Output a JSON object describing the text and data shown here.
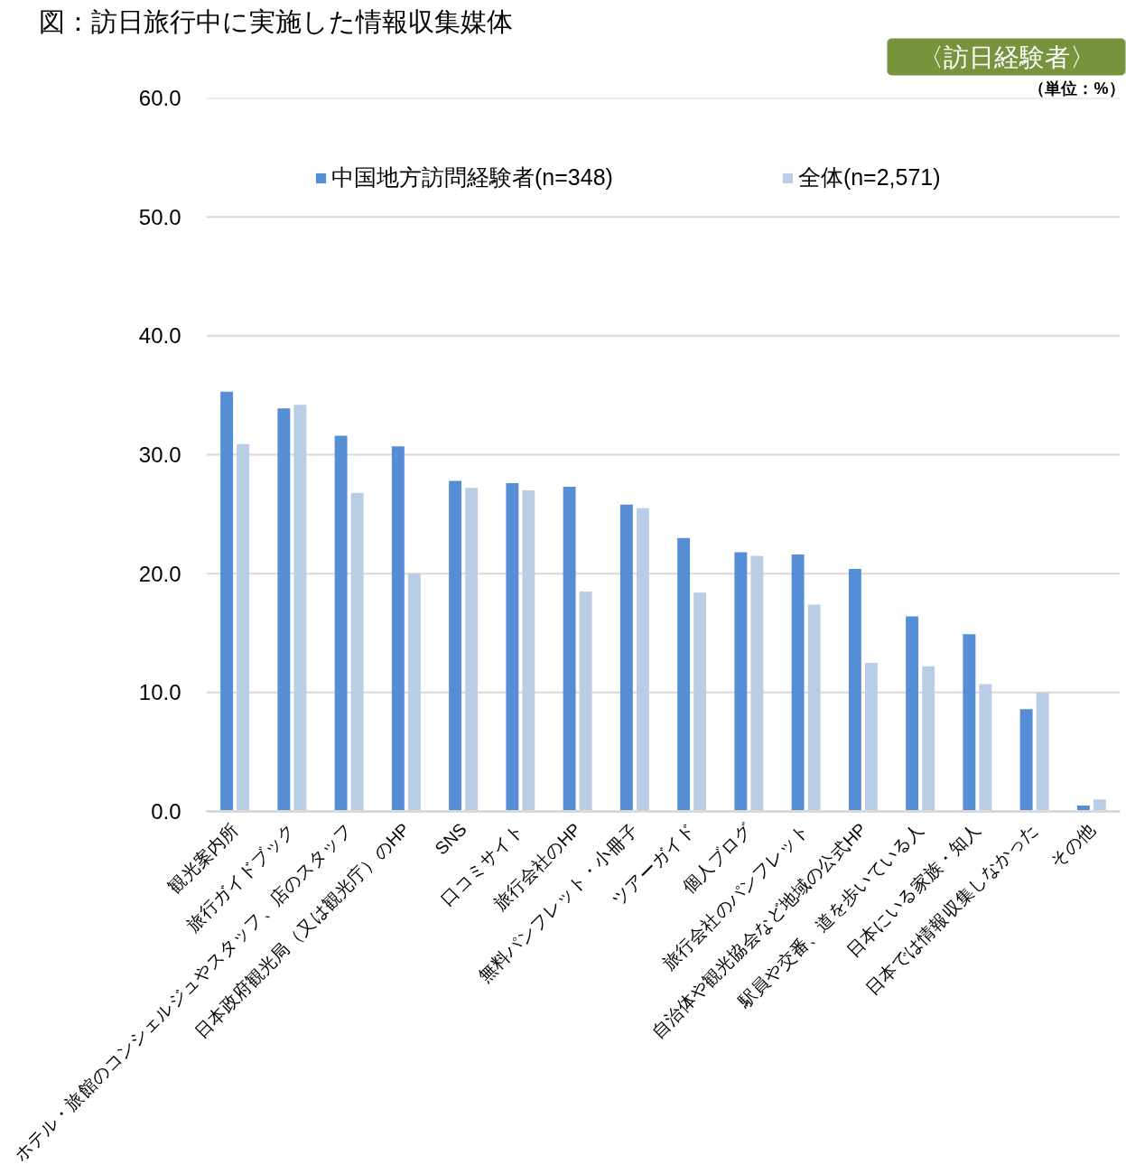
{
  "chart_data": {
    "type": "bar",
    "title": "図：訪日旅行中に実施した情報収集媒体",
    "subtitle": "〈訪日経験者〉",
    "annotations": [
      "（単位：%）"
    ],
    "categories": [
      "観光案内所",
      "旅行ガイドブック",
      "ホテル・旅館のコンシェルジュやスタッフ、店のスタッフ",
      "日本政府観光局（又は観光庁）のHP",
      "SNS",
      "口コミサイト",
      "旅行会社のHP",
      "無料パンフレット・小冊子",
      "ツアーガイド",
      "個人ブログ",
      "旅行会社のパンフレット",
      "自治体や観光協会など地域の公式HP",
      "駅員や交番、道を歩いている人",
      "日本にいる家族・知人",
      "日本では情報収集しなかった",
      "その他"
    ],
    "series": [
      {
        "name": "中国地方訪問経験者(n=348)",
        "color": "#558ed5",
        "values": [
          35.3,
          33.9,
          31.6,
          30.7,
          27.8,
          27.6,
          27.3,
          25.8,
          23.0,
          21.8,
          21.6,
          20.4,
          16.4,
          14.9,
          8.6,
          0.5
        ]
      },
      {
        "name": "全体(n=2,571)",
        "color": "#b9cde5",
        "values": [
          30.9,
          34.2,
          26.8,
          20.0,
          27.2,
          27.0,
          18.5,
          25.5,
          18.4,
          21.5,
          17.4,
          12.5,
          12.2,
          10.7,
          10.0,
          1.0
        ]
      }
    ],
    "ylim": [
      0,
      60
    ],
    "yticks": [
      {
        "value": 0,
        "label": "0.0"
      },
      {
        "value": 10,
        "label": "10.0"
      },
      {
        "value": 20,
        "label": "20.0"
      },
      {
        "value": 30,
        "label": "30.0"
      },
      {
        "value": 40,
        "label": "40.0"
      },
      {
        "value": 50,
        "label": "50.0"
      },
      {
        "value": 60,
        "label": "60.0"
      }
    ],
    "grid": "y",
    "legend": "top"
  }
}
